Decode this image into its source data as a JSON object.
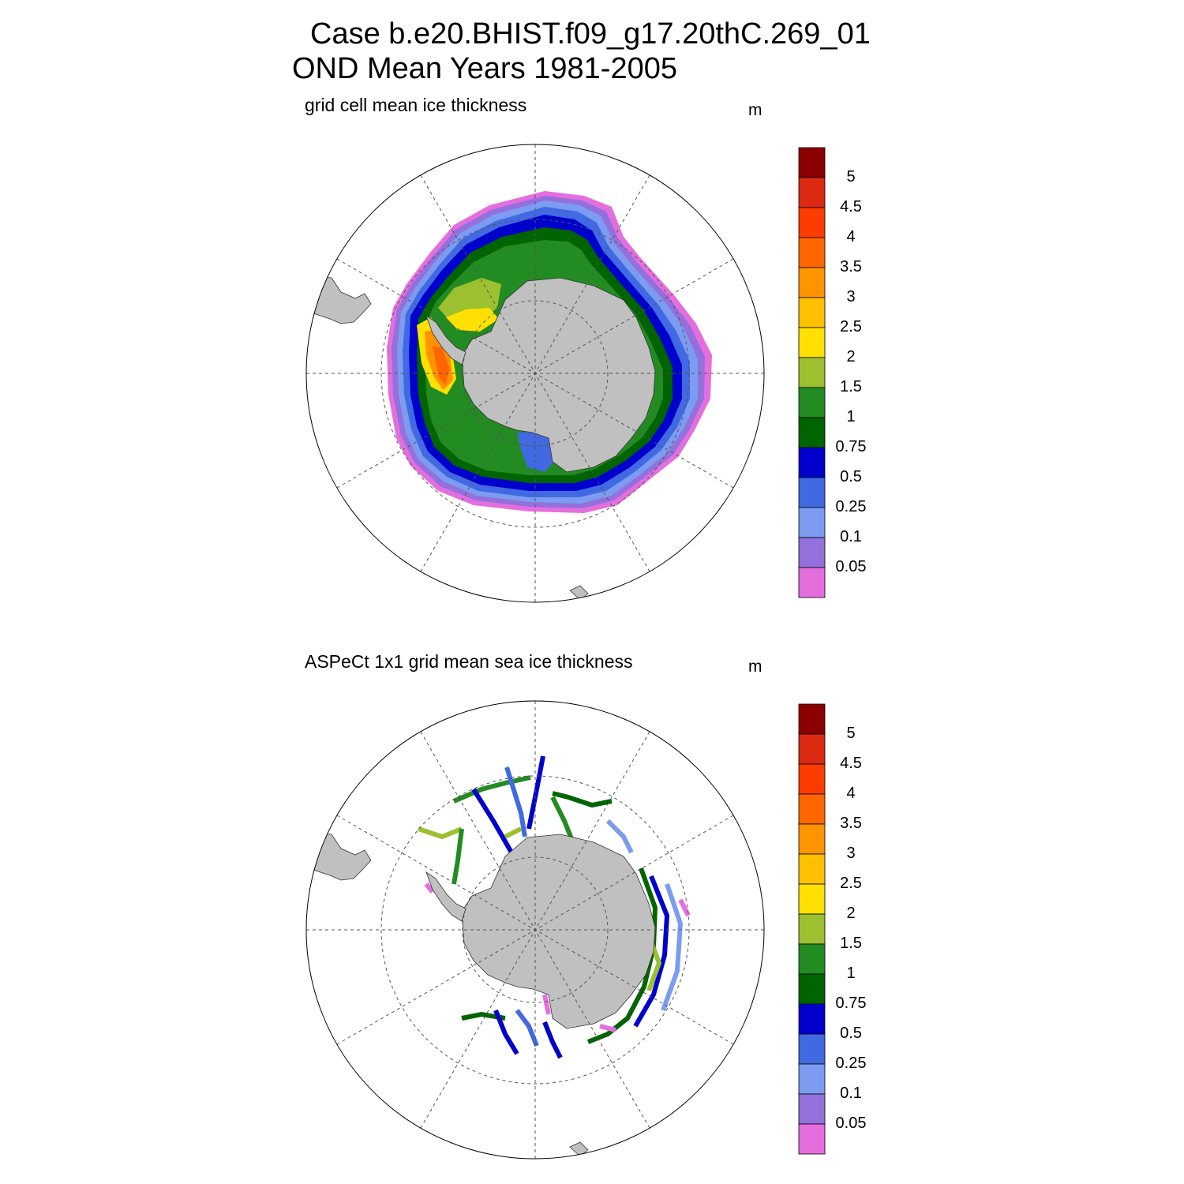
{
  "title": {
    "line1": "Case b.e20.BHIST.f09_g17.20thC.269_01",
    "line2": "OND Mean   Years 1981-2005"
  },
  "panels": [
    {
      "subtitle": "grid cell mean ice thickness",
      "units": "m"
    },
    {
      "subtitle": "ASPeCt 1x1 grid mean sea ice thickness",
      "units": "m"
    }
  ],
  "colorbar": {
    "levels": [
      "5",
      "4.5",
      "4",
      "3.5",
      "3",
      "2.5",
      "2",
      "1.5",
      "1",
      "0.75",
      "0.5",
      "0.25",
      "0.1",
      "0.05"
    ],
    "colors": [
      "#8b0000",
      "#dc2a12",
      "#ff3c00",
      "#ff6600",
      "#ff9400",
      "#ffc000",
      "#ffe000",
      "#9dc031",
      "#228b22",
      "#006400",
      "#0000cd",
      "#4169e1",
      "#7b9cf0",
      "#9370db",
      "#e56edf"
    ]
  },
  "colors": {
    "land": "#c0c0c0",
    "grid": "#555555"
  }
}
